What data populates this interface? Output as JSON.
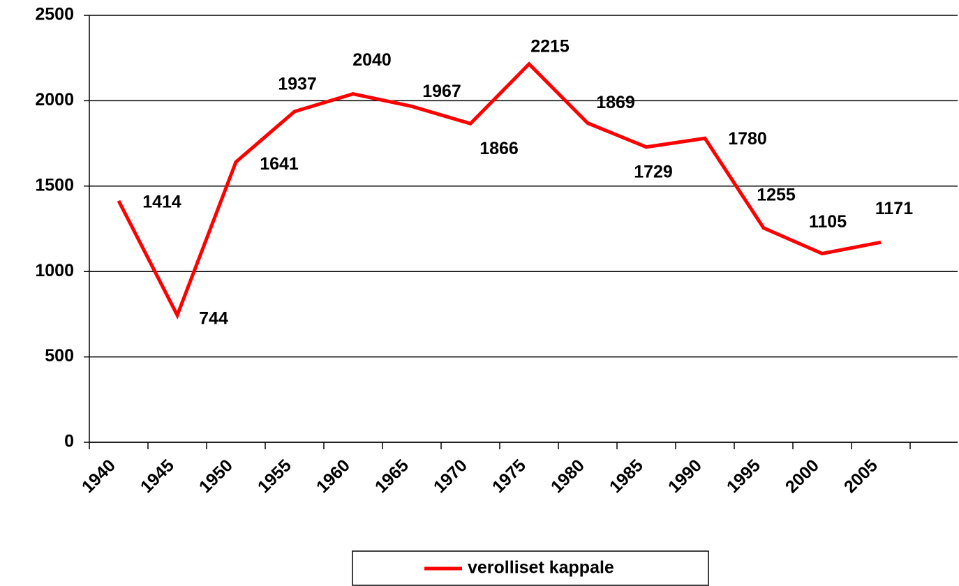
{
  "chart_data": {
    "type": "line",
    "categories": [
      "1940",
      "1945",
      "1950",
      "1955",
      "1960",
      "1965",
      "1970",
      "1975",
      "1980",
      "1985",
      "1990",
      "1995",
      "2000",
      "2005",
      null
    ],
    "series": [
      {
        "name": "verolliset kappale",
        "color": "#ff0000",
        "values": [
          1414,
          744,
          1641,
          1937,
          2040,
          1967,
          1866,
          2215,
          1869,
          1729,
          1780,
          1255,
          1105,
          1171,
          null
        ]
      }
    ],
    "ylim": [
      0,
      2500
    ],
    "yticks": [
      0,
      500,
      1000,
      1500,
      2000,
      2500
    ],
    "grid": true,
    "legend": "bottom",
    "data_labels": true
  }
}
